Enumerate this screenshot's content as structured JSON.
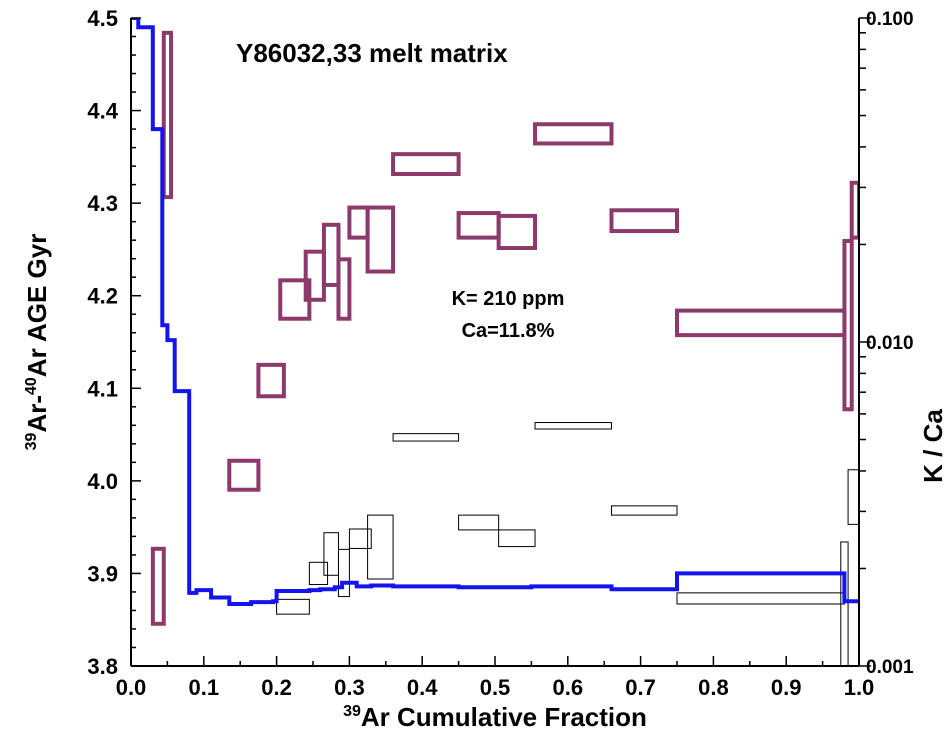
{
  "chart_data": {
    "type": "step-spectrum",
    "title": "Y86032,33  melt matrix",
    "annotations": [
      "K= 210 ppm",
      "Ca=11.8%"
    ],
    "x_axis": {
      "label_sup": "39",
      "label_text": "Ar Cumulative Fraction",
      "range": [
        0.0,
        1.0
      ],
      "ticks": [
        "0.0",
        "0.1",
        "0.2",
        "0.3",
        "0.4",
        "0.5",
        "0.6",
        "0.7",
        "0.8",
        "0.9",
        "1.0"
      ]
    },
    "y_left_axis": {
      "label_sup1": "39",
      "label_mid": "Ar-",
      "label_sup2": "40",
      "label_end": "Ar AGE Gyr",
      "range": [
        3.8,
        4.5
      ],
      "ticks": [
        "3.8",
        "3.9",
        "4.0",
        "4.1",
        "4.2",
        "4.3",
        "4.4",
        "4.5"
      ]
    },
    "y_right_axis": {
      "label": "K / Ca",
      "scale": "log",
      "range": [
        0.001,
        0.1
      ],
      "ticks": [
        "0.001",
        "0.010",
        "0.100"
      ]
    },
    "colors": {
      "age_spectrum": "#1414ee",
      "kca_boxes": "#8b3a6b",
      "age_boxes": "#000000"
    },
    "age_spectrum": [
      [
        0.0,
        4.5
      ],
      [
        0.01,
        4.5
      ],
      [
        0.01,
        4.49
      ],
      [
        0.03,
        4.49
      ],
      [
        0.03,
        4.38
      ],
      [
        0.043,
        4.38
      ],
      [
        0.043,
        4.168
      ],
      [
        0.05,
        4.168
      ],
      [
        0.05,
        4.152
      ],
      [
        0.06,
        4.152
      ],
      [
        0.06,
        4.097
      ],
      [
        0.08,
        4.097
      ],
      [
        0.08,
        3.879
      ],
      [
        0.09,
        3.879
      ],
      [
        0.09,
        3.882
      ],
      [
        0.11,
        3.882
      ],
      [
        0.11,
        3.874
      ],
      [
        0.135,
        3.874
      ],
      [
        0.135,
        3.867
      ],
      [
        0.165,
        3.867
      ],
      [
        0.165,
        3.869
      ],
      [
        0.195,
        3.869
      ],
      [
        0.195,
        3.87
      ],
      [
        0.2,
        3.87
      ],
      [
        0.2,
        3.881
      ],
      [
        0.245,
        3.881
      ],
      [
        0.245,
        3.882
      ],
      [
        0.26,
        3.882
      ],
      [
        0.26,
        3.883
      ],
      [
        0.28,
        3.883
      ],
      [
        0.28,
        3.885
      ],
      [
        0.29,
        3.885
      ],
      [
        0.29,
        3.89
      ],
      [
        0.31,
        3.89
      ],
      [
        0.31,
        3.886
      ],
      [
        0.33,
        3.886
      ],
      [
        0.33,
        3.887
      ],
      [
        0.36,
        3.887
      ],
      [
        0.36,
        3.886
      ],
      [
        0.45,
        3.886
      ],
      [
        0.45,
        3.885
      ],
      [
        0.55,
        3.885
      ],
      [
        0.55,
        3.886
      ],
      [
        0.66,
        3.886
      ],
      [
        0.66,
        3.883
      ],
      [
        0.75,
        3.883
      ],
      [
        0.75,
        3.9
      ],
      [
        0.98,
        3.9
      ],
      [
        0.98,
        3.87
      ],
      [
        1.0,
        3.87
      ]
    ],
    "kca_boxes": [
      {
        "x": [
          0.03,
          0.045
        ],
        "kca": [
          0.00135,
          0.0023
        ]
      },
      {
        "x": [
          0.045,
          0.055
        ],
        "kca": [
          0.028,
          0.09
        ]
      },
      {
        "x": [
          0.135,
          0.175
        ],
        "kca": [
          0.0035,
          0.0043
        ]
      },
      {
        "x": [
          0.175,
          0.21
        ],
        "kca": [
          0.0068,
          0.0085
        ]
      },
      {
        "x": [
          0.205,
          0.245
        ],
        "kca": [
          0.0118,
          0.0155
        ]
      },
      {
        "x": [
          0.24,
          0.265
        ],
        "kca": [
          0.0135,
          0.019
        ]
      },
      {
        "x": [
          0.265,
          0.285
        ],
        "kca": [
          0.015,
          0.023
        ]
      },
      {
        "x": [
          0.285,
          0.3
        ],
        "kca": [
          0.0118,
          0.018
        ]
      },
      {
        "x": [
          0.3,
          0.325
        ],
        "kca": [
          0.021,
          0.026
        ]
      },
      {
        "x": [
          0.325,
          0.36
        ],
        "kca": [
          0.0165,
          0.026
        ]
      },
      {
        "x": [
          0.36,
          0.45
        ],
        "kca": [
          0.033,
          0.038
        ]
      },
      {
        "x": [
          0.45,
          0.505
        ],
        "kca": [
          0.021,
          0.025
        ]
      },
      {
        "x": [
          0.505,
          0.555
        ],
        "kca": [
          0.0195,
          0.0245
        ]
      },
      {
        "x": [
          0.555,
          0.66
        ],
        "kca": [
          0.041,
          0.047
        ]
      },
      {
        "x": [
          0.66,
          0.75
        ],
        "kca": [
          0.022,
          0.0255
        ]
      },
      {
        "x": [
          0.75,
          0.98
        ],
        "kca": [
          0.0105,
          0.0125
        ]
      },
      {
        "x": [
          0.98,
          0.99
        ],
        "kca": [
          0.0062,
          0.0205
        ]
      },
      {
        "x": [
          0.99,
          1.0
        ],
        "kca": [
          0.021,
          0.031
        ]
      }
    ],
    "age_boxes": [
      {
        "x": [
          0.2,
          0.245
        ],
        "age": [
          3.856,
          3.872
        ]
      },
      {
        "x": [
          0.245,
          0.27
        ],
        "age": [
          3.888,
          3.912
        ]
      },
      {
        "x": [
          0.265,
          0.285
        ],
        "age": [
          3.898,
          3.944
        ]
      },
      {
        "x": [
          0.285,
          0.3
        ],
        "age": [
          3.875,
          3.926
        ]
      },
      {
        "x": [
          0.3,
          0.33
        ],
        "age": [
          3.927,
          3.948
        ]
      },
      {
        "x": [
          0.325,
          0.36
        ],
        "age": [
          3.894,
          3.963
        ]
      },
      {
        "x": [
          0.36,
          0.45
        ],
        "age": [
          4.043,
          4.051
        ]
      },
      {
        "x": [
          0.45,
          0.505
        ],
        "age": [
          3.947,
          3.963
        ]
      },
      {
        "x": [
          0.505,
          0.555
        ],
        "age": [
          3.929,
          3.947
        ]
      },
      {
        "x": [
          0.555,
          0.66
        ],
        "age": [
          4.056,
          4.063
        ]
      },
      {
        "x": [
          0.66,
          0.75
        ],
        "age": [
          3.963,
          3.973
        ]
      },
      {
        "x": [
          0.75,
          0.98
        ],
        "age": [
          3.867,
          3.879
        ]
      },
      {
        "x": [
          0.975,
          0.985
        ],
        "age": [
          3.8,
          3.934
        ]
      },
      {
        "x": [
          0.985,
          1.0
        ],
        "age": [
          3.953,
          4.012
        ]
      }
    ]
  }
}
